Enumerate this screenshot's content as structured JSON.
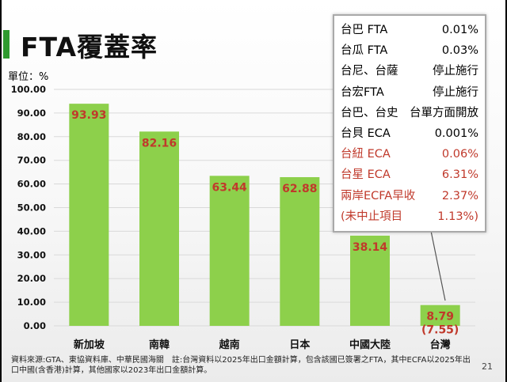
{
  "title": "FTA覆蓋率",
  "unit_label": "單位：%",
  "source_note": "資料來源:GTA、東協資料庫、中華民國海關　註:台灣資料以2025年出口金額計算，包含該國已簽署之FTA，其中ECFA以2025年出口中國(含香港)計算，其他國家以2023年出口金額計算。",
  "page_number": "21",
  "colors": {
    "bar": "#8dd04b",
    "value_label": "#c0392b",
    "grid": "#d9d9d9",
    "title_accent": "#2e9a2e",
    "highlight_text": "#c0392b"
  },
  "info_box": {
    "rows": [
      {
        "label": "台巴 FTA",
        "value": "0.01%",
        "highlight": false
      },
      {
        "label": "台瓜 FTA",
        "value": "0.03%",
        "highlight": false
      },
      {
        "label": "台尼、台薩",
        "value": "停止施行",
        "highlight": false
      },
      {
        "label": "台宏FTA",
        "value": "停止施行",
        "highlight": false
      },
      {
        "label": "台巴、台史",
        "value": "台單方面開放",
        "highlight": false
      },
      {
        "label": "台貝 ECA",
        "value": "0.001%",
        "highlight": false
      },
      {
        "label": "台紐 ECA",
        "value": "0.06%",
        "highlight": true
      },
      {
        "label": "台星 ECA",
        "value": "6.31%",
        "highlight": true
      },
      {
        "label": "兩岸ECFA早收",
        "value": "2.37%",
        "highlight": true
      },
      {
        "label": "(未中止項目",
        "value": "1.13%)",
        "highlight": true
      }
    ]
  },
  "chart_data": {
    "type": "bar",
    "title": "FTA覆蓋率",
    "ylabel": "單位：%",
    "categories": [
      "新加坡",
      "南韓",
      "越南",
      "日本",
      "中國大陸",
      "台灣"
    ],
    "values": [
      93.93,
      82.16,
      63.44,
      62.88,
      38.14,
      8.79
    ],
    "value_labels": [
      "93.93",
      "82.16",
      "63.44",
      "62.88",
      "38.14",
      "8.79"
    ],
    "extra_labels": [
      null,
      null,
      null,
      null,
      null,
      "(7.55)"
    ],
    "ylim": [
      0,
      100
    ],
    "yticks": [
      0,
      10,
      20,
      30,
      40,
      50,
      60,
      70,
      80,
      90,
      100
    ],
    "ytick_labels": [
      "0.00",
      "10.00",
      "20.00",
      "30.00",
      "40.00",
      "50.00",
      "60.00",
      "70.00",
      "80.00",
      "90.00",
      "100.00"
    ],
    "grid": true,
    "legend": "none"
  }
}
